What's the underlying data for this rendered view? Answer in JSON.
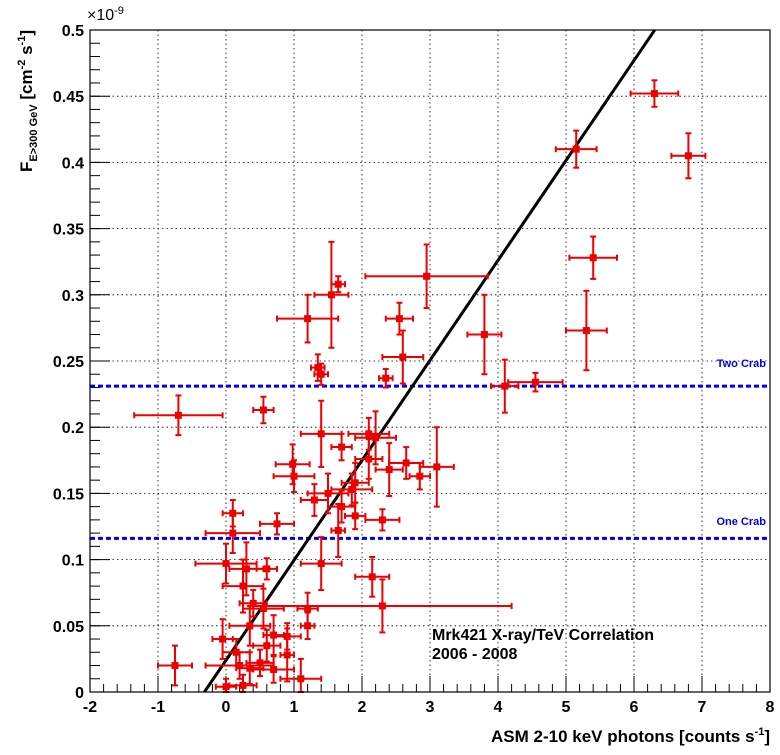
{
  "chart_data": {
    "type": "scatter",
    "title": "",
    "xlabel": "ASM 2-10 keV photons [counts s",
    "xlabel_sup": "-1",
    "xlabel_end": "]",
    "ylabel_main": "F",
    "ylabel_sub": "E>300 GeV",
    "ylabel_units": " [cm",
    "ylabel_sup1": "-2",
    "ylabel_mid": " s",
    "ylabel_sup2": "-1",
    "ylabel_end": "]",
    "y_exponent": "×10",
    "y_exponent_power": "-9",
    "xlim": [
      -2,
      8
    ],
    "ylim": [
      0,
      0.5
    ],
    "grid": true,
    "x_ticks": [
      "-2",
      "-1",
      "0",
      "1",
      "2",
      "3",
      "4",
      "5",
      "6",
      "7",
      "8"
    ],
    "y_ticks": [
      "0",
      "0.05",
      "0.1",
      "0.15",
      "0.2",
      "0.25",
      "0.3",
      "0.35",
      "0.4",
      "0.45",
      "0.5"
    ],
    "annotation_line1": "Mrk421 X-ray/TeV Correlation",
    "annotation_line2": "2006 - 2008",
    "reference_lines": [
      {
        "label": "Two Crab",
        "y": 0.231,
        "color": "#0000ee"
      },
      {
        "label": "One Crab",
        "y": 0.116,
        "color": "#0000ee"
      }
    ],
    "fit_line": {
      "slope": 0.0755,
      "intercept": 0.024,
      "color": "#000000"
    },
    "marker_color": "#ee0000",
    "points": [
      {
        "x": 6.3,
        "y": 0.452,
        "xerr": 0.35,
        "yerr": 0.01
      },
      {
        "x": 6.8,
        "y": 0.405,
        "xerr": 0.25,
        "yerr": 0.017
      },
      {
        "x": 5.15,
        "y": 0.41,
        "xerr": 0.3,
        "yerr": 0.014
      },
      {
        "x": 5.4,
        "y": 0.328,
        "xerr": 0.35,
        "yerr": 0.016
      },
      {
        "x": 5.3,
        "y": 0.273,
        "xerr": 0.3,
        "yerr": 0.03
      },
      {
        "x": 3.8,
        "y": 0.27,
        "xerr": 0.25,
        "yerr": 0.03
      },
      {
        "x": 4.55,
        "y": 0.234,
        "xerr": 0.4,
        "yerr": 0.007
      },
      {
        "x": 4.1,
        "y": 0.231,
        "xerr": 0.2,
        "yerr": 0.02
      },
      {
        "x": 2.95,
        "y": 0.314,
        "xerr": 0.9,
        "yerr": 0.024
      },
      {
        "x": 1.55,
        "y": 0.3,
        "xerr": 0.25,
        "yerr": 0.04
      },
      {
        "x": 1.65,
        "y": 0.308,
        "xerr": 0.1,
        "yerr": 0.006
      },
      {
        "x": 1.2,
        "y": 0.282,
        "xerr": 0.45,
        "yerr": 0.018
      },
      {
        "x": 2.55,
        "y": 0.282,
        "xerr": 0.2,
        "yerr": 0.012
      },
      {
        "x": 2.6,
        "y": 0.253,
        "xerr": 0.3,
        "yerr": 0.02
      },
      {
        "x": 1.35,
        "y": 0.245,
        "xerr": 0.1,
        "yerr": 0.01
      },
      {
        "x": 1.4,
        "y": 0.24,
        "xerr": 0.1,
        "yerr": 0.008
      },
      {
        "x": 2.35,
        "y": 0.237,
        "xerr": 0.1,
        "yerr": 0.007
      },
      {
        "x": -0.7,
        "y": 0.209,
        "xerr": 0.65,
        "yerr": 0.015
      },
      {
        "x": 0.55,
        "y": 0.213,
        "xerr": 0.15,
        "yerr": 0.01
      },
      {
        "x": 1.4,
        "y": 0.195,
        "xerr": 0.3,
        "yerr": 0.025
      },
      {
        "x": 2.2,
        "y": 0.192,
        "xerr": 0.3,
        "yerr": 0.02
      },
      {
        "x": 2.1,
        "y": 0.195,
        "xerr": 0.3,
        "yerr": 0.012
      },
      {
        "x": 1.7,
        "y": 0.185,
        "xerr": 0.15,
        "yerr": 0.01
      },
      {
        "x": 0.98,
        "y": 0.172,
        "xerr": 0.25,
        "yerr": 0.015
      },
      {
        "x": 1.0,
        "y": 0.163,
        "xerr": 0.3,
        "yerr": 0.012
      },
      {
        "x": 2.1,
        "y": 0.176,
        "xerr": 0.2,
        "yerr": 0.015
      },
      {
        "x": 2.65,
        "y": 0.173,
        "xerr": 0.25,
        "yerr": 0.012
      },
      {
        "x": 2.4,
        "y": 0.168,
        "xerr": 0.2,
        "yerr": 0.02
      },
      {
        "x": 3.1,
        "y": 0.17,
        "xerr": 0.25,
        "yerr": 0.03
      },
      {
        "x": 2.85,
        "y": 0.163,
        "xerr": 0.15,
        "yerr": 0.01
      },
      {
        "x": 1.9,
        "y": 0.158,
        "xerr": 0.2,
        "yerr": 0.015
      },
      {
        "x": 1.85,
        "y": 0.153,
        "xerr": 0.3,
        "yerr": 0.012
      },
      {
        "x": 1.5,
        "y": 0.15,
        "xerr": 0.3,
        "yerr": 0.015
      },
      {
        "x": 1.3,
        "y": 0.145,
        "xerr": 0.2,
        "yerr": 0.012
      },
      {
        "x": 1.7,
        "y": 0.14,
        "xerr": 0.2,
        "yerr": 0.012
      },
      {
        "x": 1.9,
        "y": 0.133,
        "xerr": 0.15,
        "yerr": 0.01
      },
      {
        "x": 2.3,
        "y": 0.13,
        "xerr": 0.25,
        "yerr": 0.008
      },
      {
        "x": 0.1,
        "y": 0.135,
        "xerr": 0.15,
        "yerr": 0.01
      },
      {
        "x": 0.75,
        "y": 0.127,
        "xerr": 0.25,
        "yerr": 0.008
      },
      {
        "x": 1.65,
        "y": 0.122,
        "xerr": 0.1,
        "yerr": 0.02
      },
      {
        "x": 0.1,
        "y": 0.12,
        "xerr": 0.4,
        "yerr": 0.015
      },
      {
        "x": 0.0,
        "y": 0.097,
        "xerr": 0.45,
        "yerr": 0.015
      },
      {
        "x": 0.3,
        "y": 0.093,
        "xerr": 0.25,
        "yerr": 0.02
      },
      {
        "x": 0.6,
        "y": 0.093,
        "xerr": 0.15,
        "yerr": 0.008
      },
      {
        "x": 1.4,
        "y": 0.097,
        "xerr": 0.3,
        "yerr": 0.02
      },
      {
        "x": 2.15,
        "y": 0.087,
        "xerr": 0.25,
        "yerr": 0.015
      },
      {
        "x": 0.25,
        "y": 0.08,
        "xerr": 0.3,
        "yerr": 0.02
      },
      {
        "x": 0.4,
        "y": 0.067,
        "xerr": 0.2,
        "yerr": 0.01
      },
      {
        "x": 0.55,
        "y": 0.063,
        "xerr": 0.3,
        "yerr": 0.015
      },
      {
        "x": 1.2,
        "y": 0.063,
        "xerr": 0.15,
        "yerr": 0.012
      },
      {
        "x": 2.3,
        "y": 0.065,
        "xerr": 1.9,
        "yerr": 0.02
      },
      {
        "x": 0.35,
        "y": 0.05,
        "xerr": 0.3,
        "yerr": 0.015
      },
      {
        "x": 1.2,
        "y": 0.05,
        "xerr": 0.1,
        "yerr": 0.01
      },
      {
        "x": -0.05,
        "y": 0.04,
        "xerr": 0.15,
        "yerr": 0.015
      },
      {
        "x": 0.9,
        "y": 0.042,
        "xerr": 0.2,
        "yerr": 0.01
      },
      {
        "x": 0.7,
        "y": 0.043,
        "xerr": 0.15,
        "yerr": 0.015
      },
      {
        "x": 0.6,
        "y": 0.035,
        "xerr": 0.2,
        "yerr": 0.012
      },
      {
        "x": 0.15,
        "y": 0.03,
        "xerr": 0.2,
        "yerr": 0.01
      },
      {
        "x": 0.9,
        "y": 0.028,
        "xerr": 0.1,
        "yerr": 0.02
      },
      {
        "x": 0.5,
        "y": 0.022,
        "xerr": 0.2,
        "yerr": 0.01
      },
      {
        "x": -0.75,
        "y": 0.02,
        "xerr": 0.25,
        "yerr": 0.015
      },
      {
        "x": 0.2,
        "y": 0.02,
        "xerr": 0.5,
        "yerr": 0.01
      },
      {
        "x": 0.35,
        "y": 0.018,
        "xerr": 0.2,
        "yerr": 0.012
      },
      {
        "x": 0.7,
        "y": 0.017,
        "xerr": 0.3,
        "yerr": 0.01
      },
      {
        "x": 1.1,
        "y": 0.01,
        "xerr": 0.3,
        "yerr": 0.015
      },
      {
        "x": 0.25,
        "y": 0.005,
        "xerr": 0.2,
        "yerr": 0.008
      },
      {
        "x": 0.0,
        "y": 0.004,
        "xerr": 0.15,
        "yerr": 0.006
      }
    ]
  }
}
